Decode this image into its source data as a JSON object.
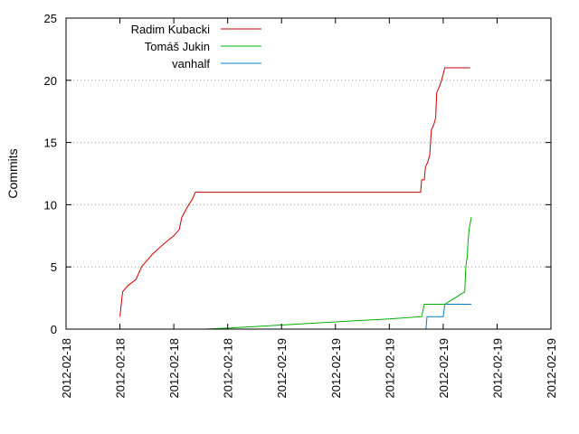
{
  "chart_data": {
    "type": "line",
    "title": "",
    "xlabel": "",
    "ylabel": "Commits",
    "ylim": [
      0,
      25
    ],
    "y_ticks": [
      0,
      5,
      10,
      15,
      20,
      25
    ],
    "xlim": [
      0,
      9
    ],
    "x_tick_labels": [
      "2012-02-18",
      "2012-02-18",
      "2012-02-18",
      "2012-02-18",
      "2012-02-19",
      "2012-02-19",
      "2012-02-19",
      "2012-02-19",
      "2012-02-19",
      "2012-02-19"
    ],
    "grid": "horizontal-dotted",
    "legend_position": "top-left",
    "series": [
      {
        "name": "Radim Kubacki",
        "color": "#cc0000",
        "points": [
          [
            1.0,
            1
          ],
          [
            1.05,
            3
          ],
          [
            1.15,
            3.5
          ],
          [
            1.3,
            4
          ],
          [
            1.4,
            5
          ],
          [
            1.5,
            5.5
          ],
          [
            1.6,
            6
          ],
          [
            1.8,
            6.8
          ],
          [
            2.0,
            7.5
          ],
          [
            2.1,
            8
          ],
          [
            2.15,
            9
          ],
          [
            2.25,
            9.8
          ],
          [
            2.35,
            10.5
          ],
          [
            2.4,
            11
          ],
          [
            3.0,
            11
          ],
          [
            4.0,
            11
          ],
          [
            5.0,
            11
          ],
          [
            6.0,
            11
          ],
          [
            6.58,
            11
          ],
          [
            6.6,
            12
          ],
          [
            6.65,
            12
          ],
          [
            6.67,
            13
          ],
          [
            6.72,
            13.5
          ],
          [
            6.75,
            14
          ],
          [
            6.78,
            16
          ],
          [
            6.83,
            16.5
          ],
          [
            6.86,
            17
          ],
          [
            6.88,
            19
          ],
          [
            6.93,
            19.5
          ],
          [
            6.97,
            20
          ],
          [
            7.0,
            20.5
          ],
          [
            7.03,
            21
          ],
          [
            7.5,
            21
          ]
        ]
      },
      {
        "name": "Tomáš Jukin",
        "color": "#00b000",
        "points": [
          [
            2.57,
            0
          ],
          [
            3.0,
            0.08
          ],
          [
            4.0,
            0.33
          ],
          [
            5.0,
            0.58
          ],
          [
            6.0,
            0.82
          ],
          [
            6.6,
            1
          ],
          [
            6.65,
            2
          ],
          [
            7.0,
            2
          ],
          [
            7.03,
            2
          ],
          [
            7.4,
            3
          ],
          [
            7.42,
            5
          ],
          [
            7.45,
            6
          ],
          [
            7.46,
            7
          ],
          [
            7.48,
            8
          ],
          [
            7.52,
            9
          ]
        ]
      },
      {
        "name": "vanhalf",
        "color": "#0080c0",
        "points": [
          [
            6.68,
            0
          ],
          [
            6.7,
            1
          ],
          [
            7.0,
            1
          ],
          [
            7.03,
            2
          ],
          [
            7.52,
            2
          ]
        ]
      }
    ]
  }
}
